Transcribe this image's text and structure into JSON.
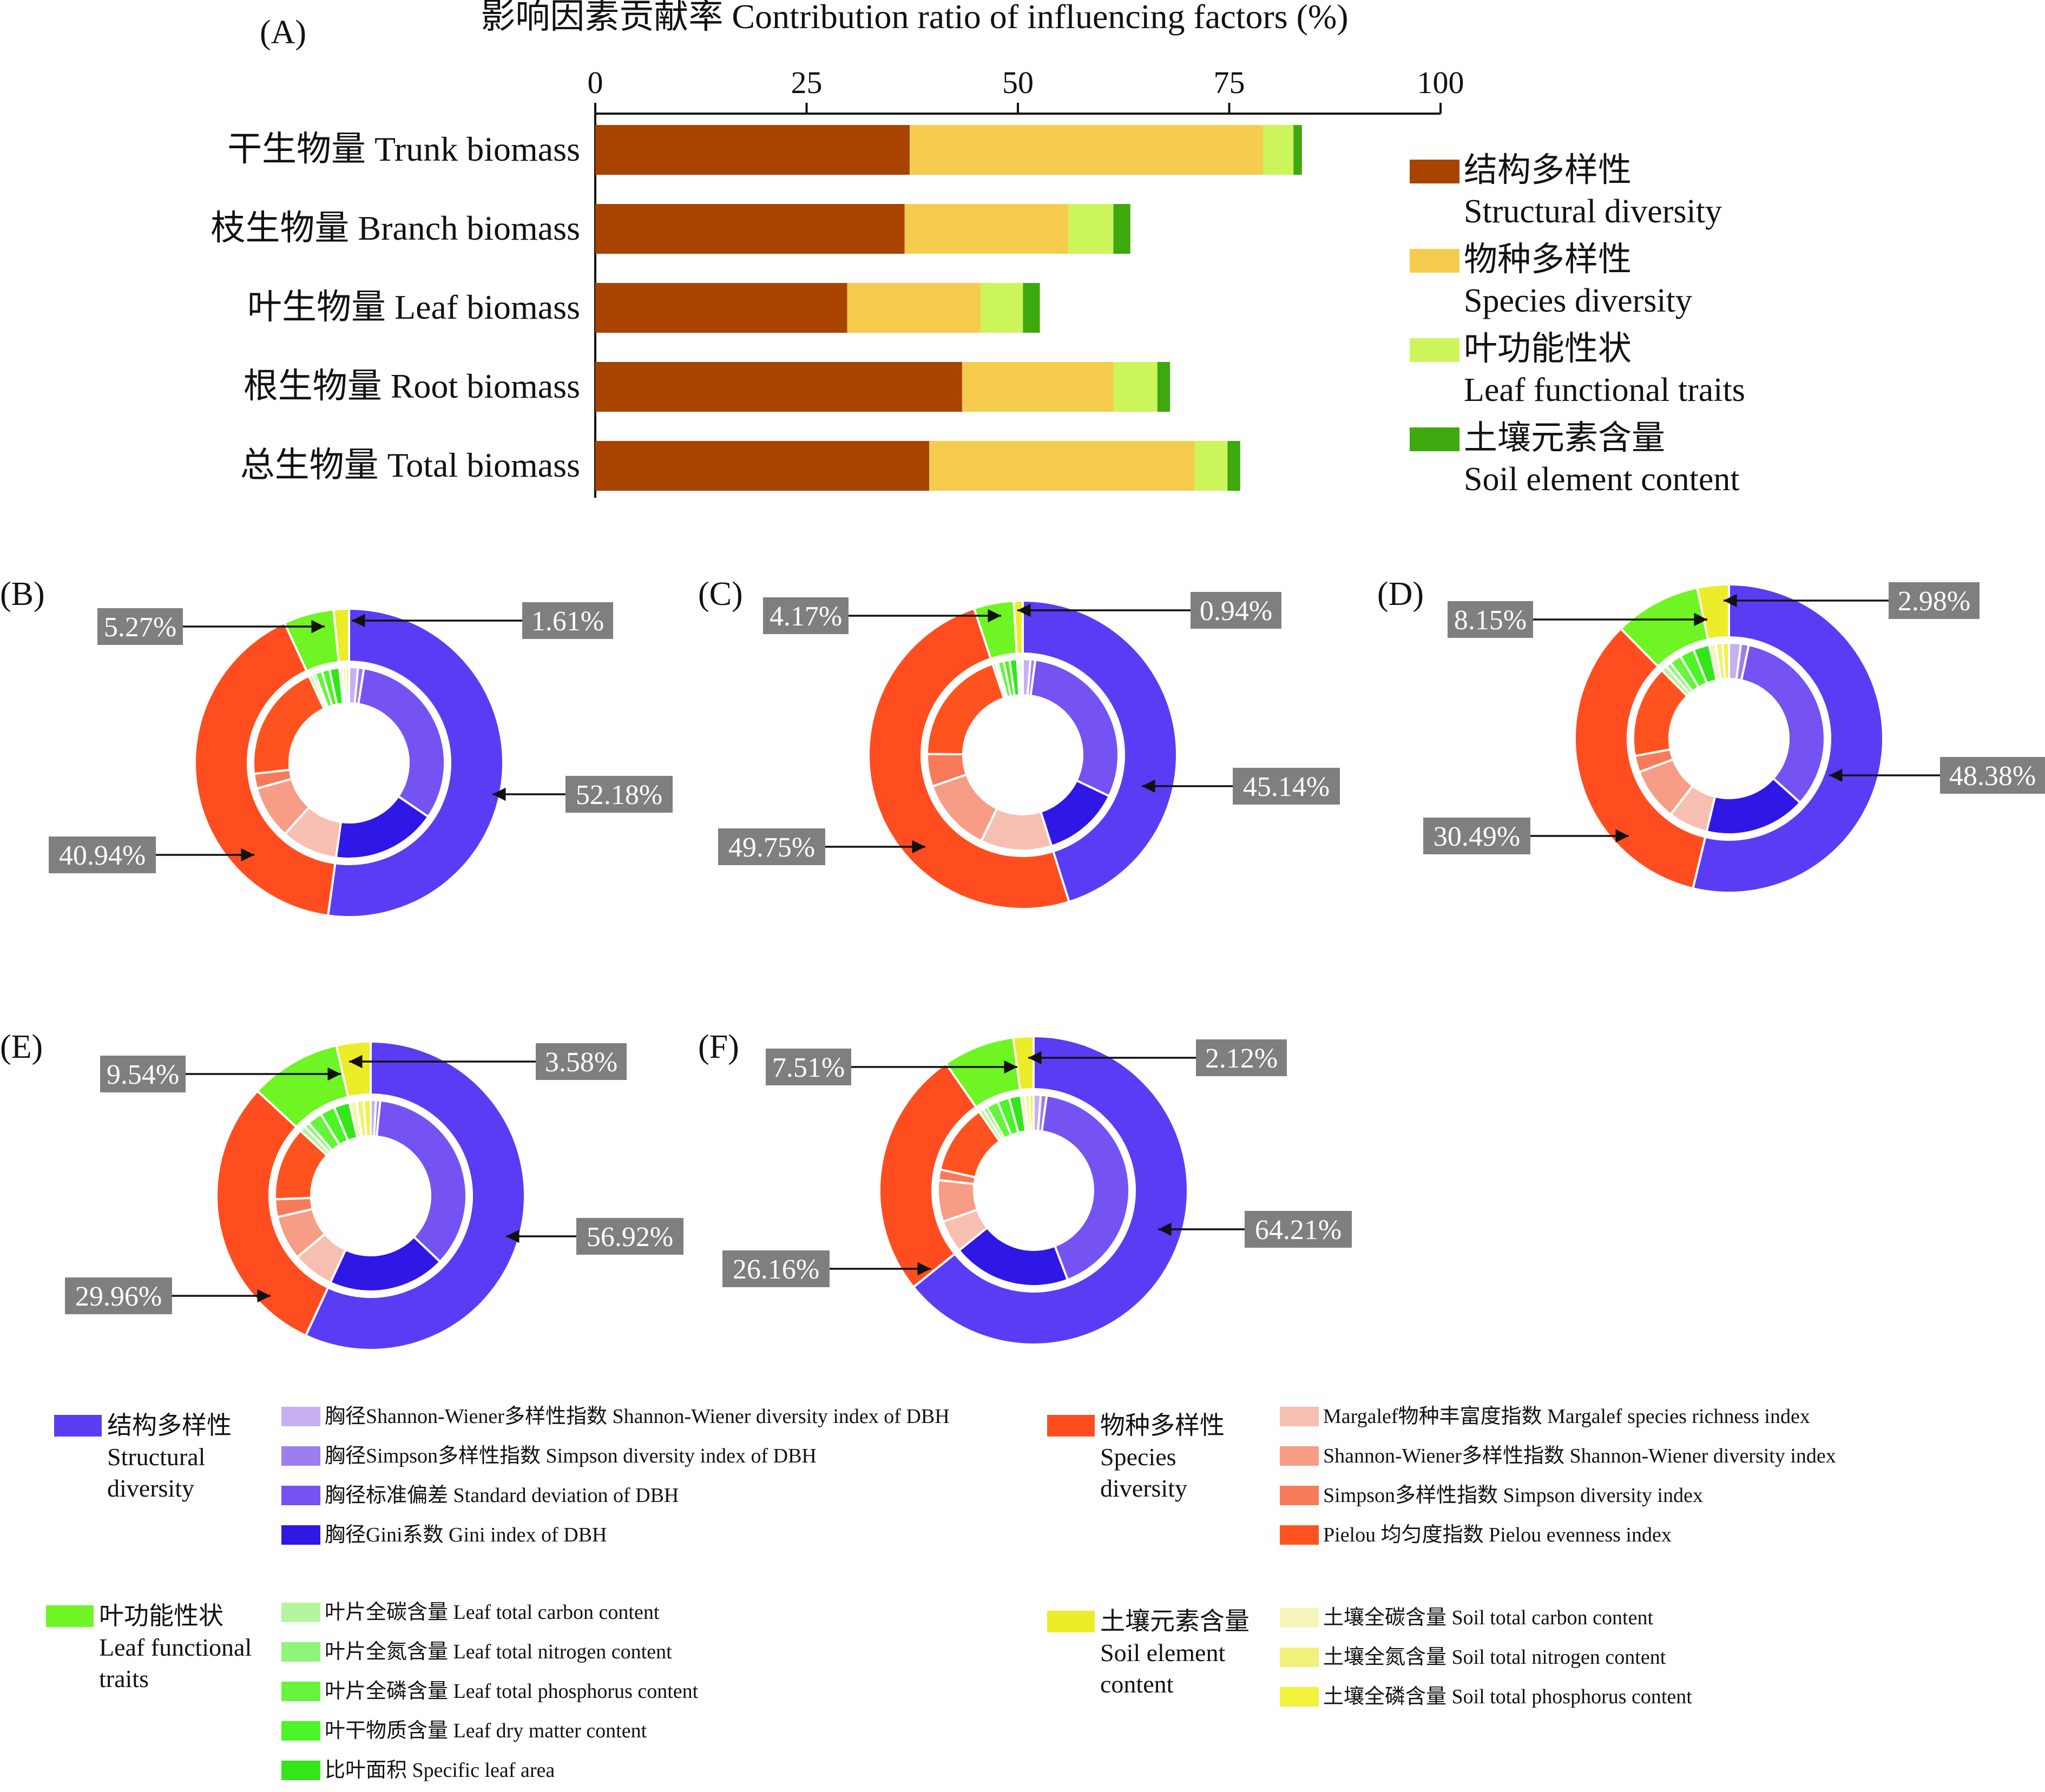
{
  "chart_data": [
    {
      "type": "bar",
      "stacked": true,
      "orientation": "horizontal",
      "panel": "(A)",
      "title": "影响因素贡献率 Contribution ratio of influencing factors (%)",
      "xlim": [
        0,
        100
      ],
      "xticks": [
        0,
        25,
        50,
        75,
        100
      ],
      "categories": [
        "干生物量 Trunk biomass",
        "枝生物量 Branch biomass",
        "叶生物量 Leaf biomass",
        "根生物量 Root biomass",
        "总生物量 Total biomass"
      ],
      "series": [
        {
          "name_cn": "结构多样性",
          "name_en": "Structural diversity",
          "color": "#a84300",
          "values": [
            37.2,
            36.6,
            29.8,
            43.4,
            39.5
          ]
        },
        {
          "name_cn": "物种多样性",
          "name_en": " Species diversity",
          "color": "#f5cc4e",
          "values": [
            41.8,
            19.4,
            15.8,
            17.9,
            31.4
          ]
        },
        {
          "name_cn": "叶功能性状",
          "name_en": "Leaf functional traits",
          "color": "#ccf55c",
          "values": [
            3.6,
            5.3,
            5.0,
            5.2,
            3.9
          ]
        },
        {
          "name_cn": "土壤元素含量",
          "name_en": "Soil element content",
          "color": "#3ea80f",
          "values": [
            1.0,
            2.0,
            2.0,
            1.5,
            1.5
          ]
        }
      ],
      "legend_position": "right"
    },
    {
      "type": "pie",
      "panels": [
        {
          "letter": "(B)",
          "outer": [
            52.18,
            40.94,
            5.27,
            1.61
          ],
          "labels": [
            "52.18%",
            "40.94%",
            "5.27%",
            "1.61%"
          ],
          "inner_struct": [
            1.5,
            1.0,
            32.0,
            17.68
          ],
          "inner_species": [
            9.5,
            9.0,
            2.5,
            19.94
          ],
          "inner_leaf": [
            0.6,
            0.5,
            1.2,
            1.3,
            1.67
          ],
          "inner_soil": [
            0.55,
            0.53,
            0.53
          ]
        },
        {
          "letter": "(C)",
          "outer": [
            45.14,
            49.75,
            4.17,
            0.94
          ],
          "labels": [
            "45.14%",
            "49.75%",
            "4.17%",
            "0.94%"
          ],
          "inner_struct": [
            1.3,
            0.8,
            30.0,
            13.04
          ],
          "inner_species": [
            12.0,
            12.5,
            5.5,
            19.75
          ],
          "inner_leaf": [
            0.5,
            0.4,
            1.0,
            1.0,
            1.27
          ],
          "inner_soil": [
            0.32,
            0.31,
            0.31
          ]
        },
        {
          "letter": "(D)",
          "outer": [
            48.38,
            30.49,
            8.15,
            2.98
          ],
          "labels": [
            "48.38%",
            "30.49%",
            "8.15%",
            "2.98%"
          ],
          "inner_struct": [
            1.8,
            1.2,
            30.0,
            15.38
          ],
          "inner_species": [
            6.0,
            8.0,
            2.5,
            13.99
          ],
          "inner_leaf": [
            0.9,
            0.8,
            1.8,
            2.2,
            2.45
          ],
          "inner_soil": [
            1.0,
            1.0,
            0.98
          ]
        },
        {
          "letter": "(E)",
          "outer": [
            56.92,
            29.96,
            9.54,
            3.58
          ],
          "labels": [
            "56.92%",
            "29.96%",
            "9.54%",
            "3.58%"
          ],
          "inner_struct": [
            0.9,
            0.7,
            35.5,
            19.82
          ],
          "inner_species": [
            7.0,
            7.5,
            3.0,
            12.46
          ],
          "inner_leaf": [
            1.0,
            0.9,
            2.5,
            2.5,
            2.64
          ],
          "inner_soil": [
            1.2,
            1.2,
            1.18
          ]
        },
        {
          "letter": "(F)",
          "outer": [
            64.21,
            26.16,
            7.51,
            2.12
          ],
          "labels": [
            "64.21%",
            "26.16%",
            "7.51%",
            "2.12%"
          ],
          "inner_struct": [
            1.2,
            1.0,
            42.0,
            20.01
          ],
          "inner_species": [
            5.5,
            7.0,
            1.8,
            11.86
          ],
          "inner_leaf": [
            0.8,
            0.7,
            2.0,
            2.0,
            2.01
          ],
          "inner_soil": [
            0.71,
            0.71,
            0.7
          ]
        }
      ],
      "outer_colors": [
        "#5b3cf5",
        "#ff4d1f",
        "#6ef523",
        "#ecec28"
      ],
      "inner_colors": {
        "struct": [
          "#c6b0f2",
          "#9b7fef",
          "#7453f2",
          "#2f17e6"
        ],
        "species": [
          "#f7bfb2",
          "#f79c85",
          "#f77b5a",
          "#ff531f"
        ],
        "leaf": [
          "#b5f5a0",
          "#8ef57a",
          "#66f53c",
          "#4cf525",
          "#33e61a"
        ],
        "soil": [
          "#f5f5ba",
          "#f0f07a",
          "#f2f23d"
        ]
      }
    }
  ],
  "legend_bottom": {
    "groups": [
      {
        "title_lines": [
          "结构多样性",
          "Structural",
          "diversity"
        ],
        "color": "#5b3cf5",
        "items": [
          {
            "text": "胸径Shannon-Wiener多样性指数 Shannon-Wiener diversity index of DBH",
            "color": "#c6b0f2"
          },
          {
            "text": "胸径Simpson多样性指数 Simpson diversity index of DBH",
            "color": "#9b7fef"
          },
          {
            "text": "胸径标准偏差 Standard deviation of DBH",
            "color": "#7453f2"
          },
          {
            "text": "胸径Gini系数 Gini index of DBH",
            "color": "#2f17e6"
          }
        ]
      },
      {
        "title_lines": [
          "物种多样性",
          "Species",
          "diversity"
        ],
        "color": "#ff4d1f",
        "items": [
          {
            "text": "Margalef物种丰富度指数 Margalef species richness index",
            "color": "#f7bfb2"
          },
          {
            "text": "Shannon-Wiener多样性指数 Shannon-Wiener diversity index",
            "color": "#f79c85"
          },
          {
            "text": "Simpson多样性指数 Simpson diversity index",
            "color": "#f77b5a"
          },
          {
            "text": "Pielou 均匀度指数 Pielou evenness index",
            "color": "#ff531f"
          }
        ]
      },
      {
        "title_lines": [
          "叶功能性状",
          "Leaf functional",
          "traits"
        ],
        "color": "#6ef523",
        "items": [
          {
            "text": "叶片全碳含量 Leaf  total carbon content",
            "color": "#b5f5a0"
          },
          {
            "text": "叶片全氮含量 Leaf total nitrogen content",
            "color": "#8ef57a"
          },
          {
            "text": "叶片全磷含量 Leaf total phosphorus content",
            "color": "#66f53c"
          },
          {
            "text": "叶干物质含量 Leaf dry matter content",
            "color": "#4cf525"
          },
          {
            "text": "比叶面积 Specific leaf area",
            "color": "#33e61a"
          }
        ]
      },
      {
        "title_lines": [
          "土壤元素含量",
          "Soil element",
          "content"
        ],
        "color": "#ecec28",
        "items": [
          {
            "text": "土壤全碳含量 Soil total carbon content",
            "color": "#f5f5ba"
          },
          {
            "text": "土壤全氮含量 Soil total nitrogen content",
            "color": "#f0f07a"
          },
          {
            "text": "土壤全磷含量 Soil total phosphorus content",
            "color": "#f2f23d"
          }
        ]
      }
    ]
  }
}
